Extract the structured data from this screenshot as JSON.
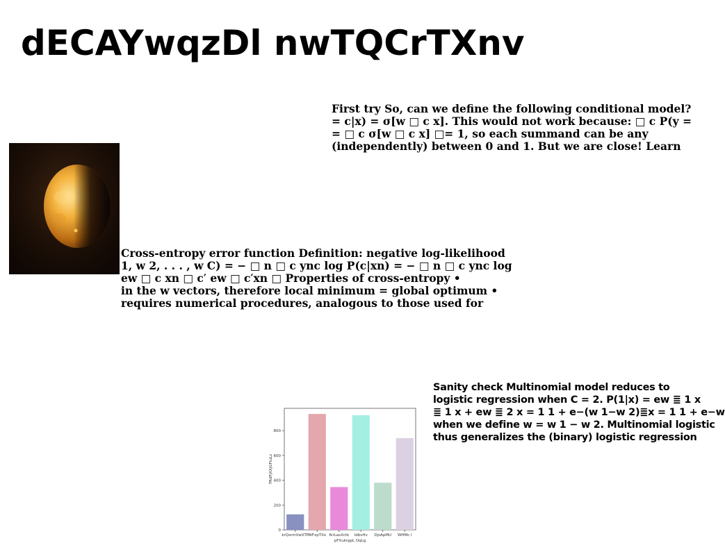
{
  "title": "dECAYwqzDl nwTQCrTXnv",
  "blocks": {
    "first_try": "First try So, can we define the following conditional model?\n= c|x) = σ[w □ c x]. This would not work because: □ c P(y =\n= □ c σ[w □ c x] □= 1, so each summand can be any\n(independently) between 0 and 1. But we are close! Learn",
    "cross_entropy": "Cross-entropy error function Definition: negative log-likelihood\n1, w 2, . . . , w C) = − □ n □ c ync log P(c|xn) = − □ n □ c ync log\new □ c xn □ c′ ew □ c′xn □ Properties of cross-entropy •\nin the w vectors, therefore local minimum = global optimum •\nrequires numerical procedures, analogous to those used for",
    "sanity": "Sanity check Multinomial model reduces to\nlogistic regression when C = 2. P(1|x) = ew ≣ 1 x\n≣ 1 x + ew ≣ 2 x = 1 1 + e−(w 1−w 2)≣x = 1 1 + e−w\nwhen we define w = w 1 − w 2. Multinomial logistic\nthus generalizes the (binary) logistic regression"
  },
  "chart_data": {
    "type": "bar",
    "categories": [
      "krQsrmVwXTP",
      "WFxpTXx",
      "fkrLasXctk",
      "ldbvHv",
      "DjsApMU",
      "WHMc l"
    ],
    "values": [
      125,
      935,
      345,
      925,
      380,
      740
    ],
    "colors": [
      "#8891c0",
      "#e4a7ad",
      "#ea89db",
      "#a5efe2",
      "#bddccc",
      "#dcd1e3"
    ],
    "xlabel": "pFXukrgpL OqLg",
    "ylabel": "TRdFjXXjGFtuLz",
    "ylim": [
      0,
      980
    ],
    "yticks": [
      0,
      200,
      400,
      600,
      800
    ],
    "grid": false
  }
}
